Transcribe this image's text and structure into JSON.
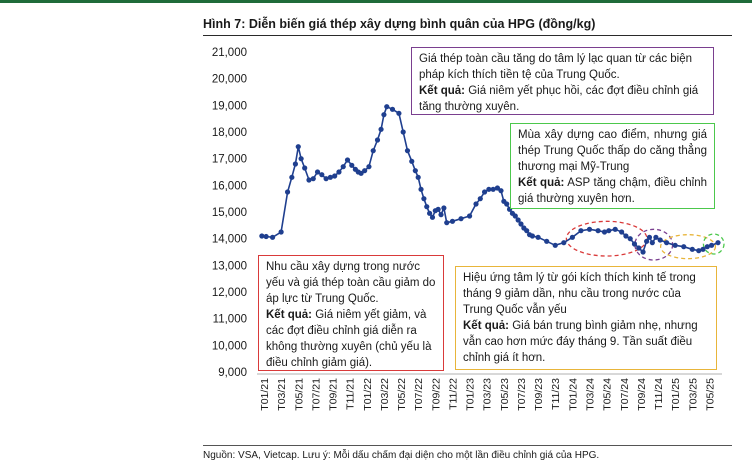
{
  "title": "Hình 7: Diễn biến giá thép xây dựng bình quân của HPG (đồng/kg)",
  "source": "Nguồn: VSA, Vietcap. Lưu ý: Mỗi dấu chấm đại diện cho một lần điều chỉnh giá của HPG.",
  "colors": {
    "line": "#1f3f8f",
    "bar": "#1f6b3a",
    "purple": "#7a3f8f",
    "green": "#4cc84c",
    "red": "#d93a3a",
    "yellow": "#e8b53a"
  },
  "notes": {
    "n1": {
      "text": "Giá thép toàn cầu tăng do tâm lý lạc quan từ các biện pháp kích thích tiền tệ của Trung Quốc.",
      "result_label": "Kết quả:",
      "result": " Giá niêm yết phục hồi, các đợt điều chỉnh giá tăng thường xuyên."
    },
    "n2": {
      "text": "Mùa xây dựng cao điểm, nhưng giá thép Trung Quốc thấp do căng thẳng thương mại Mỹ-Trung",
      "result_label": "Kết quả:",
      "result": " ASP tăng chậm, điều chỉnh giá thường xuyên hơn."
    },
    "n3": {
      "text": "Nhu cầu xây dựng trong nước yếu và giá thép toàn cầu giảm do áp lực từ Trung Quốc.",
      "result_label": "Kết quả:",
      "result": " Giá niêm yết giảm, và các đợt điều chỉnh giá diễn ra không thường xuyên (chủ yếu là điều chỉnh giảm giá)."
    },
    "n4": {
      "text": "Hiệu ứng tâm lý từ gói kích thích kinh tế trong tháng 9 giảm dần, nhu cầu trong nước của Trung Quốc vẫn yếu",
      "result_label": "Kết quả:",
      "result": " Giá bán trung bình giảm nhẹ, nhưng vẫn cao hơn mức đáy tháng 9. Tần suất điều chỉnh giá ít hơn."
    }
  },
  "chart_data": {
    "type": "line",
    "title": "Hình 7: Diễn biến giá thép xây dựng bình quân của HPG (đồng/kg)",
    "ylim": [
      9000,
      21000
    ],
    "y_ticks": [
      "9,000",
      "10,000",
      "11,000",
      "12,000",
      "13,000",
      "14,000",
      "15,000",
      "16,000",
      "17,000",
      "18,000",
      "19,000",
      "20,000",
      "21,000"
    ],
    "x_tick_labels": [
      "T01/21",
      "T03/21",
      "T05/21",
      "T07/21",
      "T09/21",
      "T11/21",
      "T01/22",
      "T03/22",
      "T05/22",
      "T07/22",
      "T09/22",
      "T11/22",
      "T01/23",
      "T03/23",
      "T05/23",
      "T07/23",
      "T09/23",
      "T11/23",
      "T01/24",
      "T03/24",
      "T05/24",
      "T07/24",
      "T09/24",
      "T11/24",
      "T01/25",
      "T03/25",
      "T05/25"
    ],
    "x_range_months": [
      "T01/21",
      "T06/25"
    ],
    "series": [
      {
        "marker": "dot",
        "points": [
          [
            "T01/21",
            14100
          ],
          [
            "T01/21",
            14080
          ],
          [
            "T02/21",
            14050
          ],
          [
            "T03/21",
            14250
          ],
          [
            "T04/21",
            15750
          ],
          [
            "T04/21",
            16300
          ],
          [
            "T05/21",
            16800
          ],
          [
            "T05/21",
            17450
          ],
          [
            "T05/21",
            17000
          ],
          [
            "T06/21",
            16650
          ],
          [
            "T06/21",
            16200
          ],
          [
            "T07/21",
            16250
          ],
          [
            "T07/21",
            16500
          ],
          [
            "T08/21",
            16400
          ],
          [
            "T08/21",
            16250
          ],
          [
            "T09/21",
            16300
          ],
          [
            "T09/21",
            16350
          ],
          [
            "T10/21",
            16500
          ],
          [
            "T10/21",
            16700
          ],
          [
            "T11/21",
            16950
          ],
          [
            "T11/21",
            16750
          ],
          [
            "T12/21",
            16600
          ],
          [
            "T12/21",
            16500
          ],
          [
            "T12/21",
            16450
          ],
          [
            "T01/22",
            16550
          ],
          [
            "T01/22",
            16700
          ],
          [
            "T02/22",
            17300
          ],
          [
            "T02/22",
            17700
          ],
          [
            "T03/22",
            18100
          ],
          [
            "T03/22",
            18650
          ],
          [
            "T03/22",
            18950
          ],
          [
            "T04/22",
            18850
          ],
          [
            "T05/22",
            18700
          ],
          [
            "T05/22",
            18000
          ],
          [
            "T06/22",
            17300
          ],
          [
            "T06/22",
            16900
          ],
          [
            "T07/22",
            16550
          ],
          [
            "T07/22",
            16300
          ],
          [
            "T07/22",
            15850
          ],
          [
            "T08/22",
            15500
          ],
          [
            "T08/22",
            15200
          ],
          [
            "T08/22",
            14950
          ],
          [
            "T09/22",
            14800
          ],
          [
            "T09/22",
            15050
          ],
          [
            "T09/22",
            15100
          ],
          [
            "T10/22",
            14900
          ],
          [
            "T10/22",
            15150
          ],
          [
            "T10/22",
            14600
          ],
          [
            "T11/22",
            14650
          ],
          [
            "T12/22",
            14750
          ],
          [
            "T01/23",
            14850
          ],
          [
            "T02/23",
            15300
          ],
          [
            "T02/23",
            15500
          ],
          [
            "T03/23",
            15750
          ],
          [
            "T03/23",
            15850
          ],
          [
            "T04/23",
            15850
          ],
          [
            "T04/23",
            15900
          ],
          [
            "T05/23",
            15800
          ],
          [
            "T05/23",
            15400
          ],
          [
            "T05/23",
            15300
          ],
          [
            "T06/23",
            15100
          ],
          [
            "T06/23",
            14950
          ],
          [
            "T06/23",
            14850
          ],
          [
            "T07/23",
            14700
          ],
          [
            "T07/23",
            14550
          ],
          [
            "T07/23",
            14400
          ],
          [
            "T08/23",
            14300
          ],
          [
            "T08/23",
            14150
          ],
          [
            "T08/23",
            14100
          ],
          [
            "T09/23",
            14050
          ],
          [
            "T10/23",
            13900
          ],
          [
            "T11/23",
            13750
          ],
          [
            "T12/23",
            13850
          ],
          [
            "T01/24",
            14050
          ],
          [
            "T02/24",
            14300
          ],
          [
            "T03/24",
            14350
          ],
          [
            "T04/24",
            14300
          ],
          [
            "T05/24",
            14250
          ],
          [
            "T05/24",
            14300
          ],
          [
            "T06/24",
            14350
          ],
          [
            "T07/24",
            14250
          ],
          [
            "T07/24",
            14100
          ],
          [
            "T08/24",
            14000
          ],
          [
            "T08/24",
            13800
          ],
          [
            "T09/24",
            13650
          ],
          [
            "T09/24",
            13500
          ],
          [
            "T10/24",
            13900
          ],
          [
            "T10/24",
            14050
          ],
          [
            "T10/24",
            13850
          ],
          [
            "T11/24",
            14050
          ],
          [
            "T11/24",
            13950
          ],
          [
            "T12/24",
            13850
          ],
          [
            "T01/25",
            13750
          ],
          [
            "T02/25",
            13700
          ],
          [
            "T03/25",
            13600
          ],
          [
            "T04/25",
            13550
          ],
          [
            "T04/25",
            13600
          ],
          [
            "T05/25",
            13700
          ],
          [
            "T05/25",
            13750
          ],
          [
            "T06/25",
            13850
          ]
        ]
      }
    ],
    "highlight_ellipses": [
      {
        "color": "red",
        "from": "T01/24",
        "to": "T09/24"
      },
      {
        "color": "purple",
        "from": "T09/24",
        "to": "T12/24"
      },
      {
        "color": "yellow",
        "from": "T12/24",
        "to": "T05/25"
      },
      {
        "color": "green",
        "from": "T05/25",
        "to": "T06/25"
      }
    ],
    "grid": false,
    "legend": "none"
  }
}
